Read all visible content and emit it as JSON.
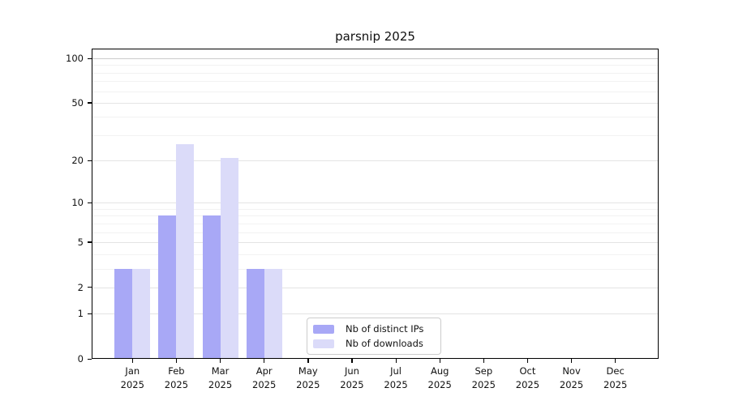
{
  "chart_data": {
    "type": "bar",
    "title": "parsnip 2025",
    "categories": [
      "Jan 2025",
      "Feb 2025",
      "Mar 2025",
      "Apr 2025",
      "May 2025",
      "Jun 2025",
      "Jul 2025",
      "Aug 2025",
      "Sep 2025",
      "Oct 2025",
      "Nov 2025",
      "Dec 2025"
    ],
    "series": [
      {
        "name": "Nb of distinct IPs",
        "color": "#a8a8f6",
        "values": [
          3,
          8,
          8,
          3,
          0,
          0,
          0,
          0,
          0,
          0,
          0,
          0
        ]
      },
      {
        "name": "Nb of downloads",
        "color": "#dbdbf9",
        "values": [
          3,
          26,
          21,
          3,
          0,
          0,
          0,
          0,
          0,
          0,
          0,
          0
        ]
      }
    ],
    "xlabel": "",
    "ylabel": "",
    "yscale": "log1p",
    "ylim": [
      0,
      110
    ],
    "y_ticks": [
      0,
      1,
      2,
      5,
      10,
      20,
      50,
      100
    ],
    "y_minor_gridlines": [
      3,
      4,
      6,
      7,
      8,
      9,
      30,
      40,
      60,
      70,
      80,
      90
    ],
    "grid": "on",
    "legend_position": "lower-center"
  },
  "colors": {
    "background": "#ffffff",
    "spine": "#000000",
    "text": "#111111",
    "grid_minor": "#f2f2f2",
    "grid_major": "#e4e4e4",
    "grid_top": "#cccccc",
    "legend_border": "#cccccc"
  }
}
